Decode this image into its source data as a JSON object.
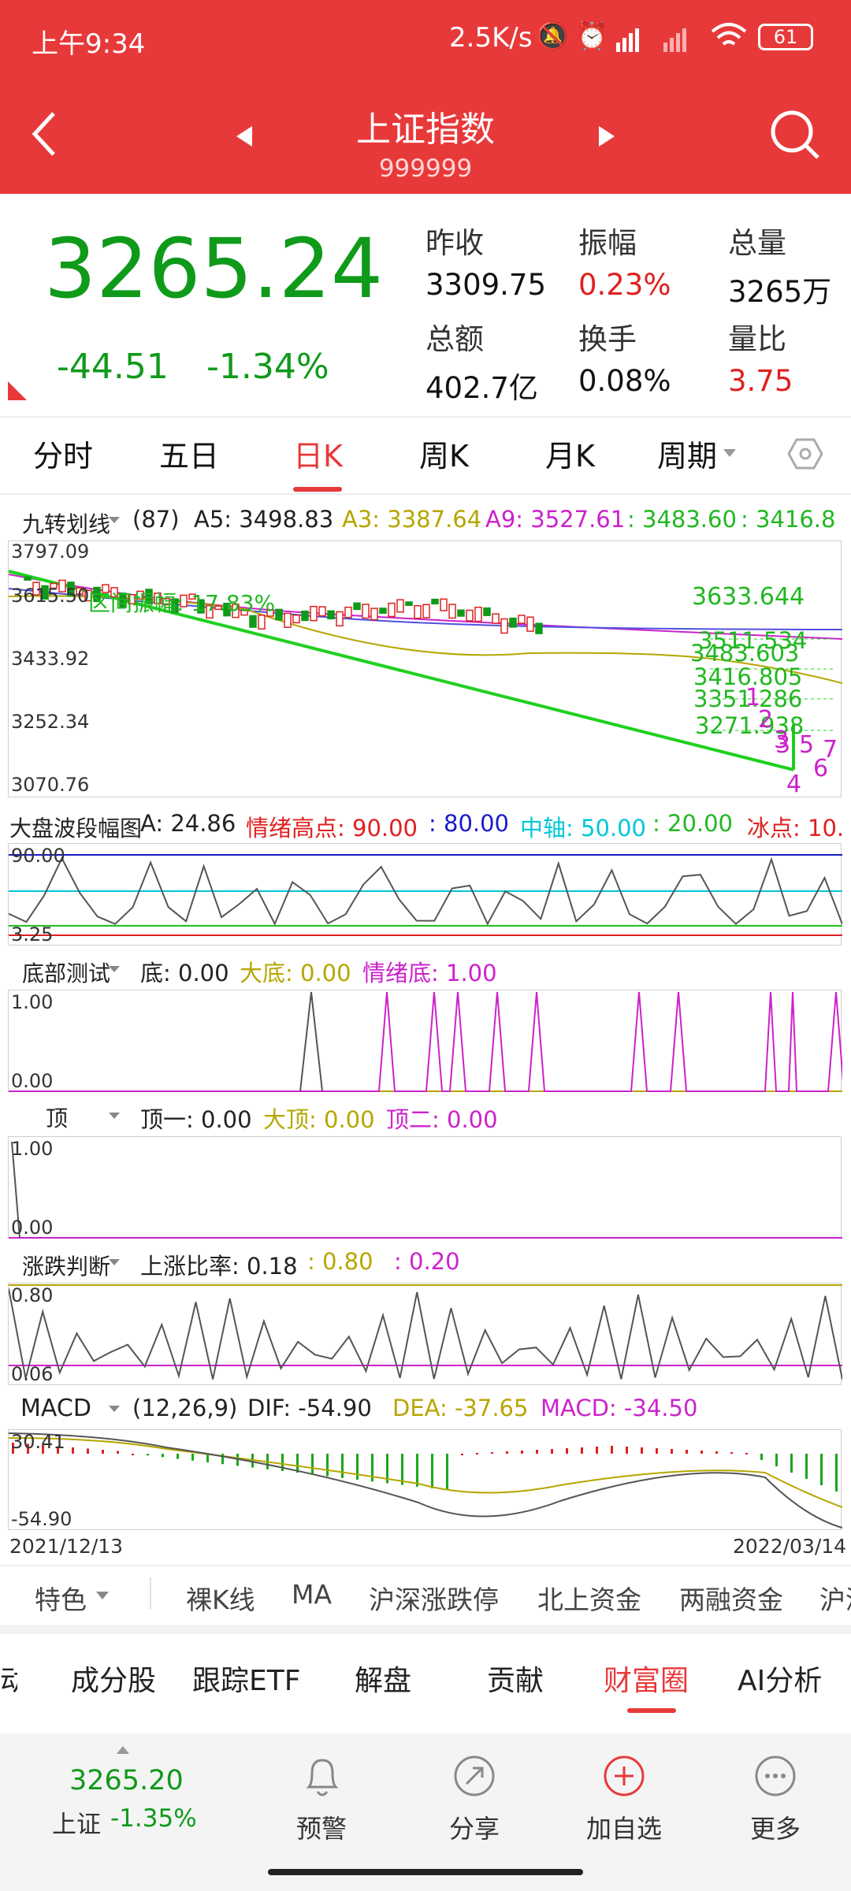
{
  "status": {
    "time": "上午9:34",
    "speed": "2.5K/s",
    "battery": "61"
  },
  "header": {
    "title": "上证指数",
    "code": "999999"
  },
  "quote": {
    "price": "3265.24",
    "change": "-44.51",
    "change_pct": "-1.34%",
    "items": [
      {
        "label": "昨收",
        "value": "3309.75",
        "color": "#111"
      },
      {
        "label": "振幅",
        "value": "0.23%",
        "color": "#e02020"
      },
      {
        "label": "总量",
        "value": "3265万",
        "color": "#111"
      },
      {
        "label": "总额",
        "value": "402.7亿",
        "color": "#111"
      },
      {
        "label": "换手",
        "value": "0.08%",
        "color": "#111"
      },
      {
        "label": "量比",
        "value": "3.75",
        "color": "#e02020"
      }
    ]
  },
  "tabs": [
    "分时",
    "五日",
    "日K",
    "周K",
    "月K",
    "周期"
  ],
  "active_tab": "日K",
  "kline": {
    "name": "九转划线",
    "params": "(87)",
    "a5": "A5: 3498.83",
    "a3": "A3: 3387.64",
    "a9": "A9: 3527.61",
    "v1": ": 3483.60",
    "v2": ": 3416.8",
    "y_labels": [
      "3797.09",
      "3615.50",
      "3433.92",
      "3252.34",
      "3070.76"
    ],
    "annot": "区间振幅: 17.83%",
    "marks": [
      "3633.644",
      "3511.534",
      "3483.603",
      "3416.805",
      "3351.286",
      "3271.938"
    ],
    "nums": [
      "1",
      "2",
      "3",
      "3",
      "5",
      "7",
      "6",
      "4"
    ]
  },
  "wave": {
    "name": "大盘波段幅图",
    "a": "A: 24.86",
    "hi": "情绪高点: 90.00",
    "v80": ": 80.00",
    "mid": "中轴: 50.00",
    "v20": ": 20.00",
    "ice": "冰点: 10.",
    "y_top": "90.00",
    "y_bot": "3.25"
  },
  "bottom_test": {
    "name": "底部测试",
    "di": "底: 0.00",
    "dadi": "大底: 0.00",
    "qxd": "情绪底: 1.00",
    "y_top": "1.00",
    "y_bot": "0.00"
  },
  "top_test": {
    "name": "顶",
    "d1": "顶一: 0.00",
    "dd": "大顶: 0.00",
    "d2": "顶二: 0.00",
    "y_top": "1.00",
    "y_bot": "0.00"
  },
  "updown": {
    "name": "涨跌判断",
    "ratio": "上涨比率: 0.18",
    "v80": ": 0.80",
    "v20": ": 0.20",
    "y_top": "0.80",
    "y_bot": "0.06"
  },
  "macd": {
    "name": "MACD",
    "params": "(12,26,9)",
    "dif": "DIF: -54.90",
    "dea": "DEA: -37.65",
    "macd": "MACD: -34.50",
    "y_top": "30.41",
    "y_bot": "-54.90",
    "date_start": "2021/12/13",
    "date_end": "2022/03/14"
  },
  "toolbar": [
    "特色",
    "裸K线",
    "MA",
    "沪深涨跌停",
    "北上资金",
    "两融资金",
    "沪深"
  ],
  "subtabs": [
    "动",
    "成分股",
    "跟踪ETF",
    "解盘",
    "贡献",
    "财富圈",
    "AI分析"
  ],
  "active_subtab": "财富圈",
  "bottom": {
    "price": "3265.20",
    "label": "上证",
    "pct": "-1.35%",
    "buttons": [
      "预警",
      "分享",
      "加自选",
      "更多"
    ]
  }
}
